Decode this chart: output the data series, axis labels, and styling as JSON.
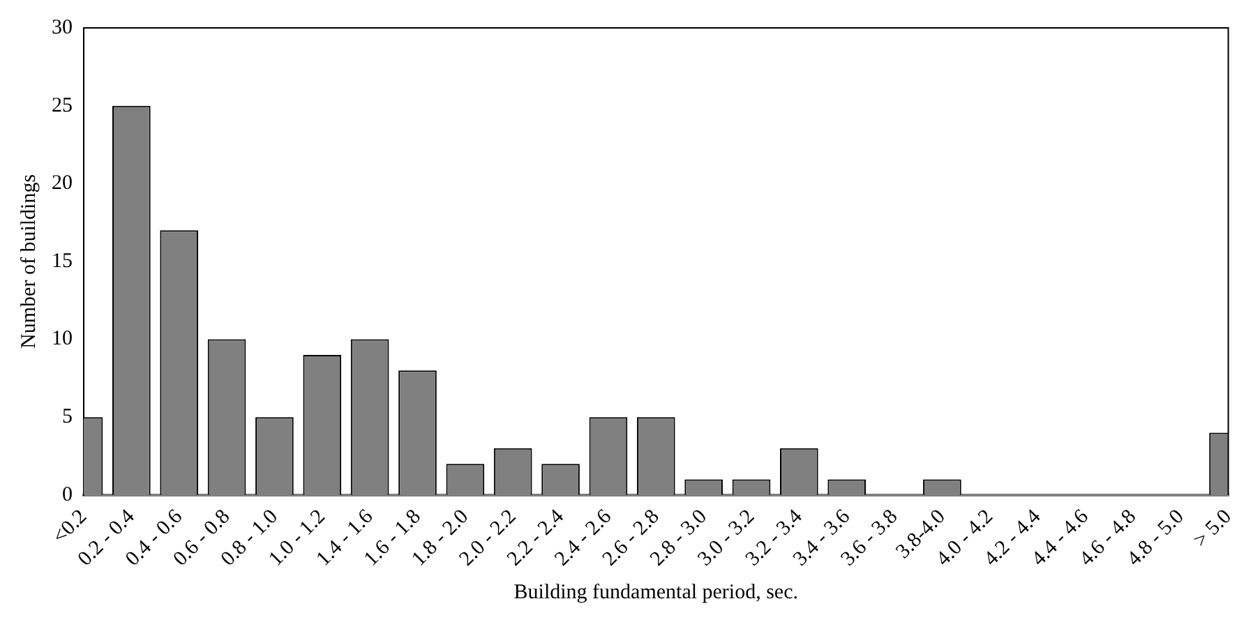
{
  "chart_data": {
    "type": "bar",
    "xlabel": "Building fundamental period, sec.",
    "ylabel": "Number of buildings",
    "categories": [
      "<0.2",
      "0.2 - 0.4",
      "0.4 - 0.6",
      "0.6 - 0.8",
      "0.8 - 1.0",
      "1.0 - 1.2",
      "1.4 - 1.6",
      "1.6 - 1.8",
      "1.8 - 2.0",
      "2.0 - 2.2",
      "2.2 - 2.4",
      "2.4 - 2.6",
      "2.6 - 2.8",
      "2.8 - 3.0",
      "3.0 - 3.2",
      "3.2 - 3.4",
      "3.4 - 3.6",
      "3.6 - 3.8",
      "3.8-4.0",
      "4.0 - 4.2",
      "4.2 - 4.4",
      "4.4 - 4.6",
      "4.6 - 4.8",
      "4.8 - 5.0",
      "> 5.0"
    ],
    "values": [
      5,
      25,
      17,
      10,
      5,
      9,
      10,
      8,
      2,
      3,
      2,
      5,
      5,
      1,
      1,
      3,
      1,
      0,
      1,
      0,
      0,
      0,
      0,
      0,
      4
    ],
    "color": "#808080",
    "ylim": [
      0,
      30
    ],
    "yticks": [
      0,
      5,
      10,
      15,
      20,
      25,
      30
    ],
    "grid": false,
    "legend": false
  }
}
